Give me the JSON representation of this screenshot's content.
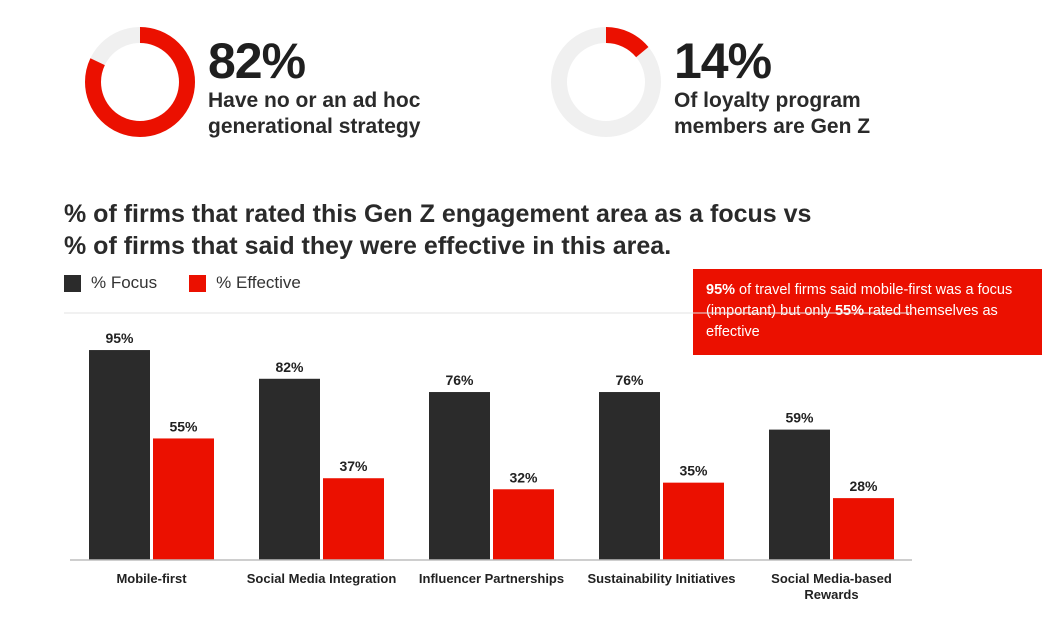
{
  "stats": [
    {
      "value": "82%",
      "description": "Have no or an ad hoc\ngenerational strategy",
      "fraction": 0.82
    },
    {
      "value": "14%",
      "description": "Of loyalty program\nmembers are Gen Z",
      "fraction": 0.14
    }
  ],
  "colors": {
    "focus": "#2b2b2b",
    "effective": "#eb1000",
    "ring_track": "#f0f0f0",
    "ring_fill": "#eb1000",
    "gridline": "#e3e3e3",
    "axis": "#bdbdbd"
  },
  "callout": {
    "p1_bold": "95%",
    "p1_text": " of travel firms said mobile-first was a focus (important) but only ",
    "p2_bold": "55%",
    "p2_text": " rated themselves as effective"
  },
  "chart_data": {
    "type": "bar",
    "title": "% of firms that rated this Gen Z engagement area as a focus vs\n% of firms that said they were effective in this area.",
    "categories": [
      "Mobile-first",
      "Social Media Integration",
      "Influencer Partnerships",
      "Sustainability Initiatives",
      "Social Media-based Rewards"
    ],
    "series": [
      {
        "name": "% Focus",
        "values": [
          95,
          82,
          76,
          76,
          59
        ]
      },
      {
        "name": "% Effective",
        "values": [
          55,
          37,
          32,
          35,
          28
        ]
      }
    ],
    "value_suffix": "%",
    "ylim": [
      0,
      100
    ],
    "grid": false,
    "legend_position": "top-left"
  }
}
